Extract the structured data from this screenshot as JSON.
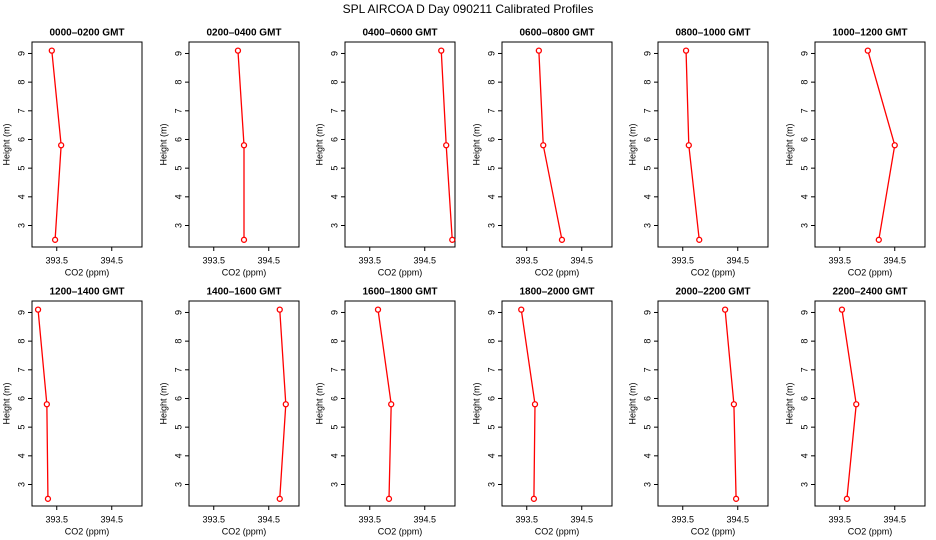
{
  "title": "SPL AIRCOA D  Day 090211  Calibrated Profiles",
  "chart_data": [
    {
      "type": "line",
      "title": "0000–0200 GMT",
      "xlabel": "CO2 (ppm)",
      "ylabel": "Height (m)",
      "x": [
        393.41,
        393.58,
        393.47
      ],
      "values": [
        9.1,
        5.8,
        2.5
      ],
      "color": "#ff0000",
      "xlim": [
        393.05,
        395.05
      ],
      "ylim": [
        2.25,
        9.4
      ],
      "xticks": [
        393.5,
        394.5
      ],
      "yticks": [
        3,
        4,
        5,
        6,
        7,
        8,
        9
      ]
    },
    {
      "type": "line",
      "title": "0200–0400 GMT",
      "xlabel": "CO2 (ppm)",
      "ylabel": "Height (m)",
      "x": [
        393.94,
        394.05,
        394.05
      ],
      "values": [
        9.1,
        5.8,
        2.5
      ],
      "color": "#ff0000",
      "xlim": [
        393.05,
        395.05
      ],
      "ylim": [
        2.25,
        9.4
      ],
      "xticks": [
        393.5,
        394.5
      ],
      "yticks": [
        3,
        4,
        5,
        6,
        7,
        8,
        9
      ]
    },
    {
      "type": "line",
      "title": "0400–0600 GMT",
      "xlabel": "CO2 (ppm)",
      "ylabel": "Height (m)",
      "x": [
        394.8,
        394.89,
        395.0
      ],
      "values": [
        9.1,
        5.8,
        2.5
      ],
      "color": "#ff0000",
      "xlim": [
        393.05,
        395.05
      ],
      "ylim": [
        2.25,
        9.4
      ],
      "xticks": [
        393.5,
        394.5
      ],
      "yticks": [
        3,
        4,
        5,
        6,
        7,
        8,
        9
      ]
    },
    {
      "type": "line",
      "title": "0600–0800 GMT",
      "xlabel": "CO2 (ppm)",
      "ylabel": "Height (m)",
      "x": [
        393.72,
        393.8,
        394.14
      ],
      "values": [
        9.1,
        5.8,
        2.5
      ],
      "color": "#ff0000",
      "xlim": [
        393.05,
        395.05
      ],
      "ylim": [
        2.25,
        9.4
      ],
      "xticks": [
        393.5,
        394.5
      ],
      "yticks": [
        3,
        4,
        5,
        6,
        7,
        8,
        9
      ]
    },
    {
      "type": "line",
      "title": "0800–1000 GMT",
      "xlabel": "CO2 (ppm)",
      "ylabel": "Height (m)",
      "x": [
        393.56,
        393.61,
        393.8
      ],
      "values": [
        9.1,
        5.8,
        2.5
      ],
      "color": "#ff0000",
      "xlim": [
        393.05,
        395.05
      ],
      "ylim": [
        2.25,
        9.4
      ],
      "xticks": [
        393.5,
        394.5
      ],
      "yticks": [
        3,
        4,
        5,
        6,
        7,
        8,
        9
      ]
    },
    {
      "type": "line",
      "title": "1000–1200 GMT",
      "xlabel": "CO2 (ppm)",
      "ylabel": "Height (m)",
      "x": [
        394.01,
        394.5,
        394.21
      ],
      "values": [
        9.1,
        5.8,
        2.5
      ],
      "color": "#ff0000",
      "xlim": [
        393.05,
        395.05
      ],
      "ylim": [
        2.25,
        9.4
      ],
      "xticks": [
        393.5,
        394.5
      ],
      "yticks": [
        3,
        4,
        5,
        6,
        7,
        8,
        9
      ]
    },
    {
      "type": "line",
      "title": "1200–1400 GMT",
      "xlabel": "CO2 (ppm)",
      "ylabel": "Height (m)",
      "x": [
        393.16,
        393.32,
        393.34
      ],
      "values": [
        9.1,
        5.8,
        2.5
      ],
      "color": "#ff0000",
      "xlim": [
        393.05,
        395.05
      ],
      "ylim": [
        2.25,
        9.4
      ],
      "xticks": [
        393.5,
        394.5
      ],
      "yticks": [
        3,
        4,
        5,
        6,
        7,
        8,
        9
      ]
    },
    {
      "type": "line",
      "title": "1400–1600 GMT",
      "xlabel": "CO2 (ppm)",
      "ylabel": "Height (m)",
      "x": [
        394.7,
        394.81,
        394.7
      ],
      "values": [
        9.1,
        5.8,
        2.5
      ],
      "color": "#ff0000",
      "xlim": [
        393.05,
        395.05
      ],
      "ylim": [
        2.25,
        9.4
      ],
      "xticks": [
        393.5,
        394.5
      ],
      "yticks": [
        3,
        4,
        5,
        6,
        7,
        8,
        9
      ]
    },
    {
      "type": "line",
      "title": "1600–1800 GMT",
      "xlabel": "CO2 (ppm)",
      "ylabel": "Height (m)",
      "x": [
        393.65,
        393.89,
        393.85
      ],
      "values": [
        9.1,
        5.8,
        2.5
      ],
      "color": "#ff0000",
      "xlim": [
        393.05,
        395.05
      ],
      "ylim": [
        2.25,
        9.4
      ],
      "xticks": [
        393.5,
        394.5
      ],
      "yticks": [
        3,
        4,
        5,
        6,
        7,
        8,
        9
      ]
    },
    {
      "type": "line",
      "title": "1800–2000 GMT",
      "xlabel": "CO2 (ppm)",
      "ylabel": "Height (m)",
      "x": [
        393.4,
        393.65,
        393.63
      ],
      "values": [
        9.1,
        5.8,
        2.5
      ],
      "color": "#ff0000",
      "xlim": [
        393.05,
        395.05
      ],
      "ylim": [
        2.25,
        9.4
      ],
      "xticks": [
        393.5,
        394.5
      ],
      "yticks": [
        3,
        4,
        5,
        6,
        7,
        8,
        9
      ]
    },
    {
      "type": "line",
      "title": "2000–2200 GMT",
      "xlabel": "CO2 (ppm)",
      "ylabel": "Height (m)",
      "x": [
        394.27,
        394.43,
        394.47
      ],
      "values": [
        9.1,
        5.8,
        2.5
      ],
      "color": "#ff0000",
      "xlim": [
        393.05,
        395.05
      ],
      "ylim": [
        2.25,
        9.4
      ],
      "xticks": [
        393.5,
        394.5
      ],
      "yticks": [
        3,
        4,
        5,
        6,
        7,
        8,
        9
      ]
    },
    {
      "type": "line",
      "title": "2200–2400 GMT",
      "xlabel": "CO2 (ppm)",
      "ylabel": "Height (m)",
      "x": [
        393.54,
        393.8,
        393.63
      ],
      "values": [
        9.1,
        5.8,
        2.5
      ],
      "color": "#ff0000",
      "xlim": [
        393.05,
        395.05
      ],
      "ylim": [
        2.25,
        9.4
      ],
      "xticks": [
        393.5,
        394.5
      ],
      "yticks": [
        3,
        4,
        5,
        6,
        7,
        8,
        9
      ]
    }
  ]
}
